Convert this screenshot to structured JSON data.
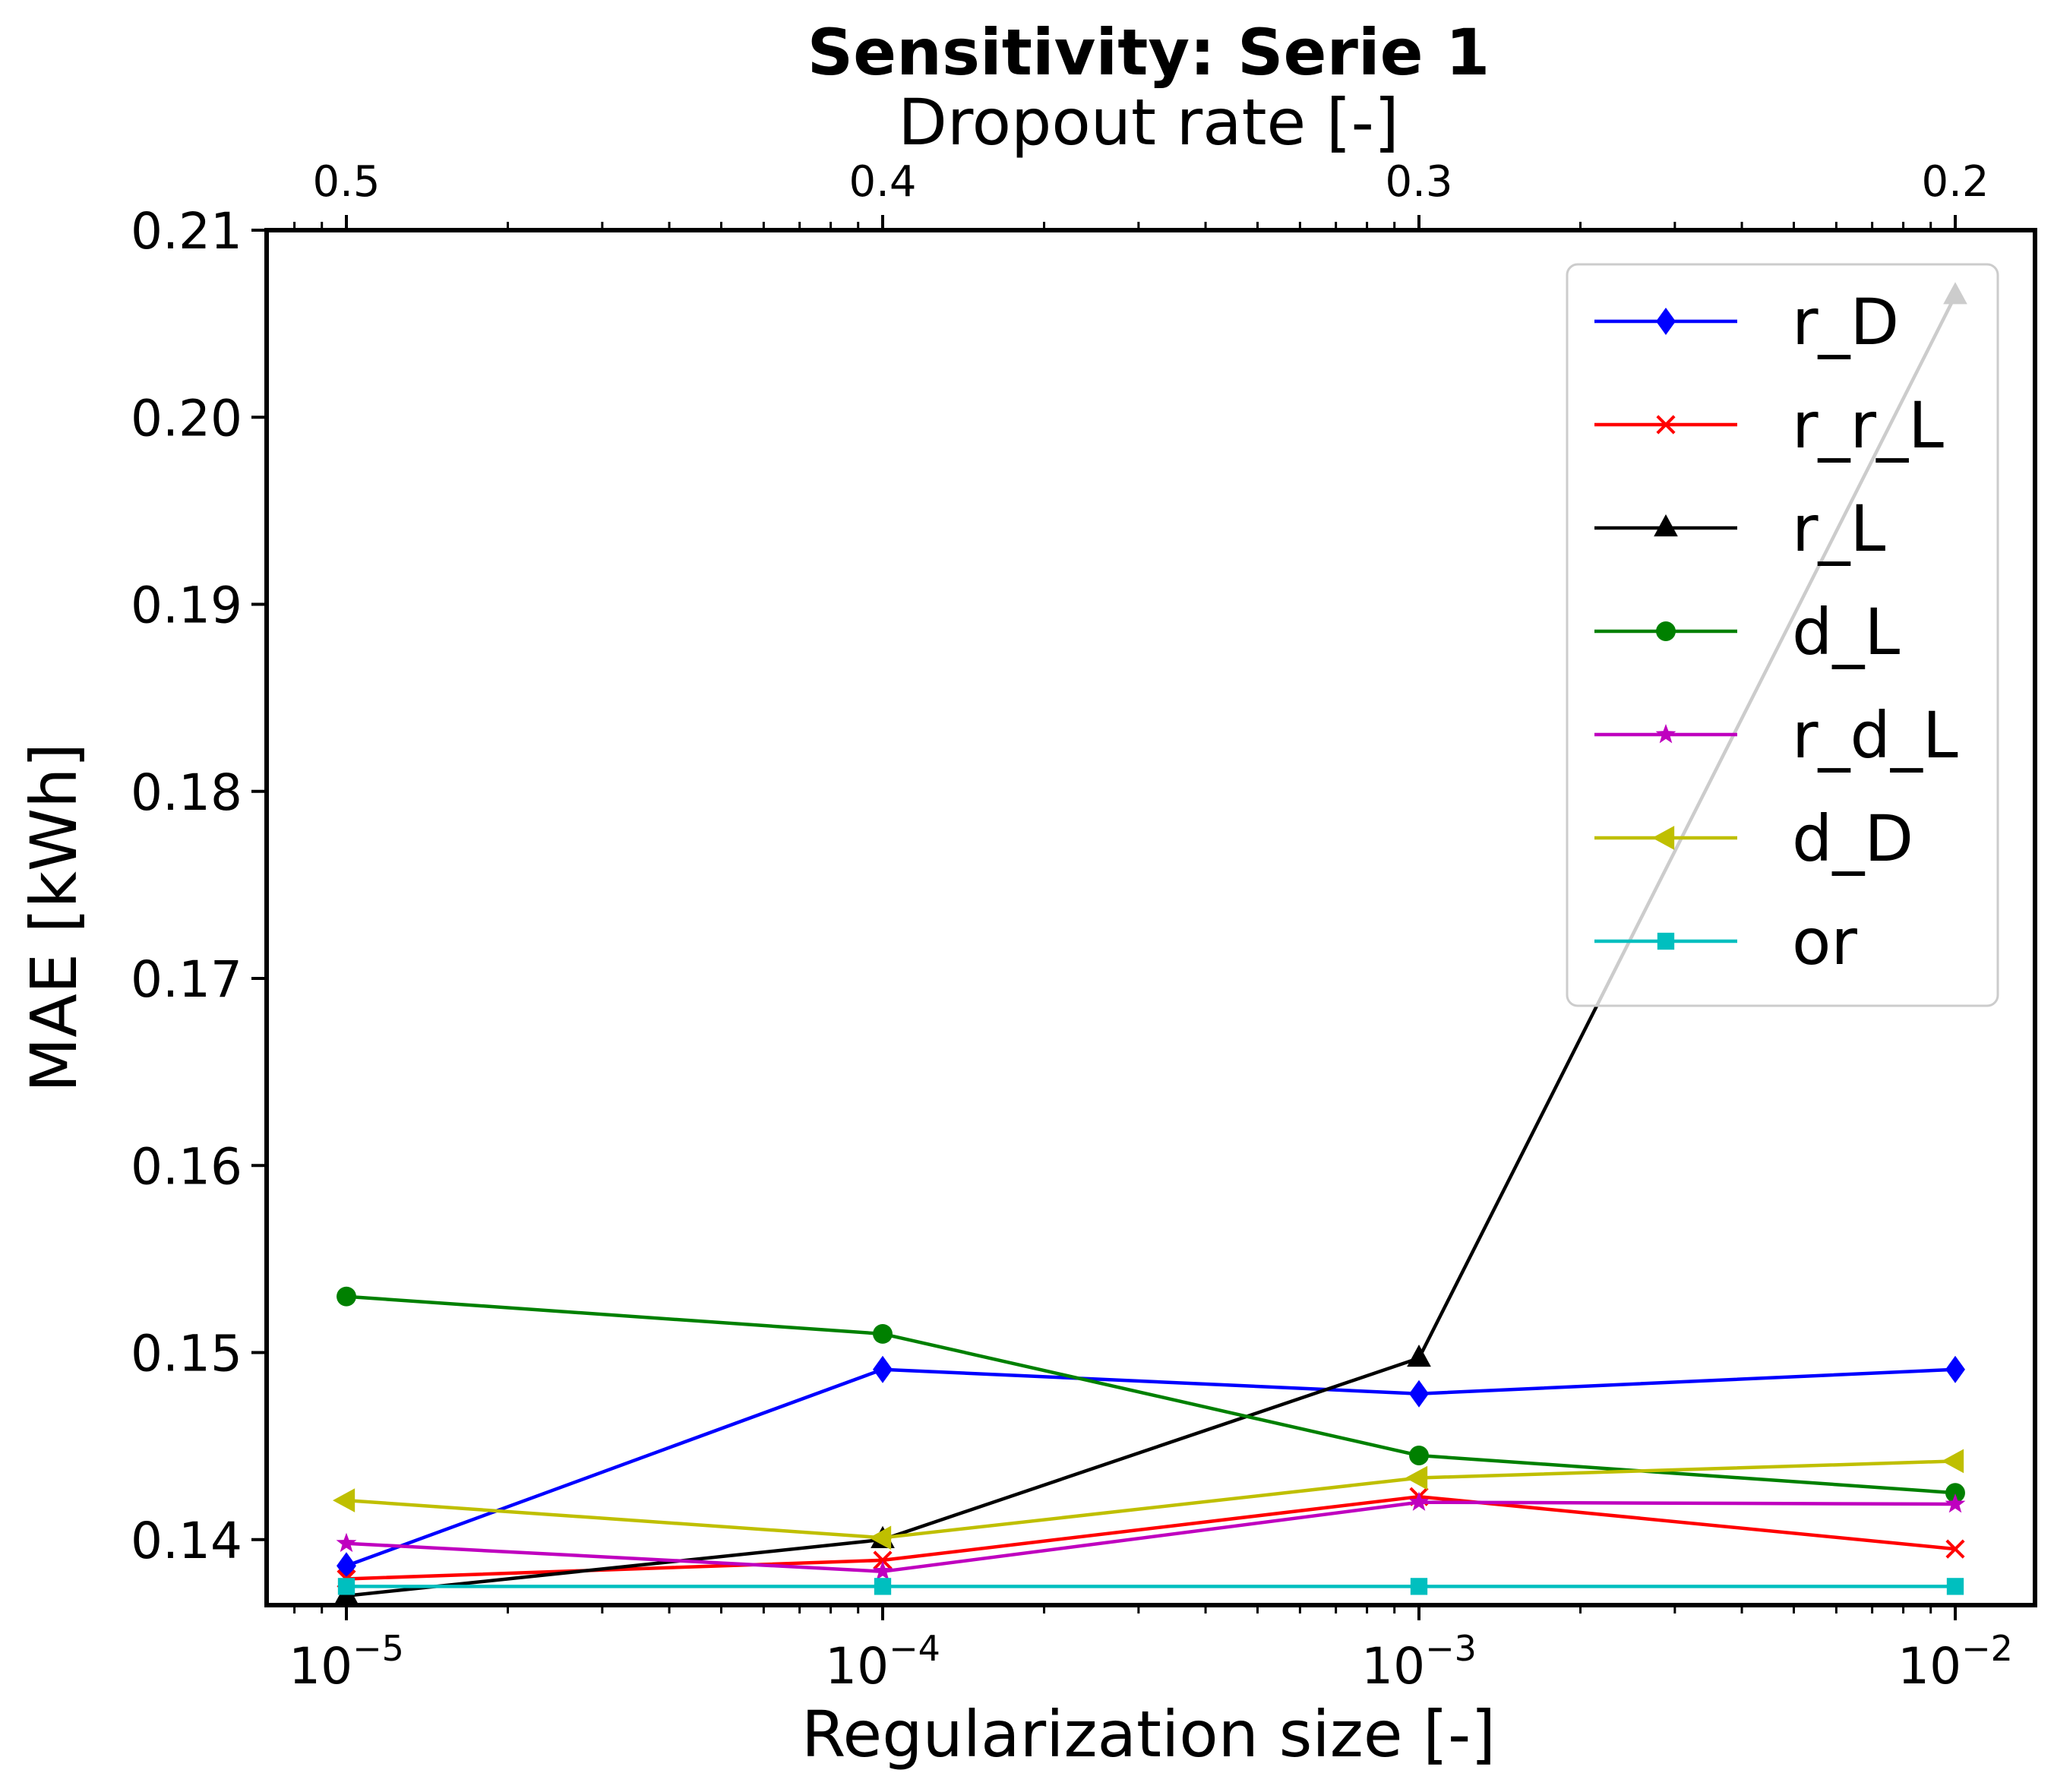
{
  "chart_data": {
    "type": "line",
    "title": "Sensitivity: Serie 1",
    "xlabel": "Regularization size [-]",
    "ylabel": "MAE [kWh]",
    "top_xlabel": "Dropout rate [-]",
    "xscale": "log",
    "x": [
      1e-05,
      0.0001,
      0.001,
      0.01
    ],
    "x_tick_labels": [
      {
        "base": "10",
        "exp": "−5"
      },
      {
        "base": "10",
        "exp": "−4"
      },
      {
        "base": "10",
        "exp": "−3"
      },
      {
        "base": "10",
        "exp": "−2"
      }
    ],
    "top_x_tick_labels": [
      "0.5",
      "0.4",
      "0.3",
      "0.2"
    ],
    "ylim": [
      0.1365,
      0.21
    ],
    "y_ticks": [
      0.14,
      0.15,
      0.16,
      0.17,
      0.18,
      0.19,
      0.2,
      0.21
    ],
    "y_tick_labels": [
      "0.14",
      "0.15",
      "0.16",
      "0.17",
      "0.18",
      "0.19",
      "0.20",
      "0.21"
    ],
    "grid": false,
    "legend_position": "top-right",
    "series": [
      {
        "name": "r_D",
        "color": "#0000ff",
        "marker": "diamond",
        "values": [
          0.1386,
          0.1491,
          0.1478,
          0.1491
        ]
      },
      {
        "name": "r_r_L",
        "color": "#ff0000",
        "marker": "x",
        "values": [
          0.1379,
          0.1389,
          0.1423,
          0.1395
        ]
      },
      {
        "name": "r_L",
        "color": "#000000",
        "marker": "triangle-up",
        "values": [
          0.137,
          0.14,
          0.1497,
          0.2065
        ]
      },
      {
        "name": "d_L",
        "color": "#008000",
        "marker": "circle",
        "values": [
          0.153,
          0.151,
          0.1445,
          0.1425
        ]
      },
      {
        "name": "r_d_L",
        "color": "#bf00bf",
        "marker": "star",
        "values": [
          0.1398,
          0.1383,
          0.142,
          0.1419
        ]
      },
      {
        "name": "d_D",
        "color": "#bfbf00",
        "marker": "triangle-left",
        "values": [
          0.1421,
          0.1401,
          0.1433,
          0.1442
        ]
      },
      {
        "name": "or",
        "color": "#00bfbf",
        "marker": "square",
        "values": [
          0.1375,
          0.1375,
          0.1375,
          0.1375
        ]
      }
    ]
  }
}
